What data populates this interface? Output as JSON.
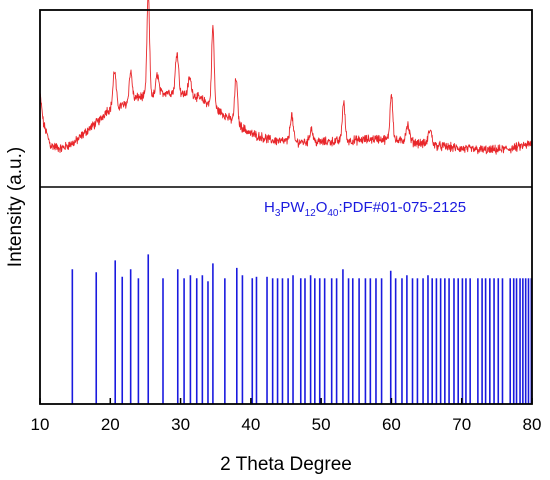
{
  "chart_data": {
    "type": "line",
    "xlabel": "2 Theta Degree",
    "ylabel": "Intensity (a.u.)",
    "xlim": [
      10,
      80
    ],
    "x_ticks": [
      10,
      20,
      30,
      40,
      50,
      60,
      70,
      80
    ],
    "colors": {
      "measured": "#e8262a",
      "reference": "#1a1adf",
      "frame": "#000000"
    },
    "panels": [
      {
        "name": "",
        "role": "measured-xrd-pattern",
        "baseline_points": [
          [
            10.0,
            0.56
          ],
          [
            10.5,
            0.38
          ],
          [
            11.5,
            0.25
          ],
          [
            13,
            0.23
          ],
          [
            15,
            0.27
          ],
          [
            17,
            0.35
          ],
          [
            18.5,
            0.4
          ],
          [
            19.5,
            0.46
          ],
          [
            21,
            0.48
          ],
          [
            22.5,
            0.5
          ],
          [
            24,
            0.54
          ],
          [
            26,
            0.55
          ],
          [
            28,
            0.57
          ],
          [
            30,
            0.56
          ],
          [
            32,
            0.55
          ],
          [
            34,
            0.5
          ],
          [
            36,
            0.44
          ],
          [
            38,
            0.38
          ],
          [
            40,
            0.32
          ],
          [
            43,
            0.28
          ],
          [
            46,
            0.27
          ],
          [
            50,
            0.27
          ],
          [
            55,
            0.28
          ],
          [
            58,
            0.29
          ],
          [
            60,
            0.28
          ],
          [
            63,
            0.27
          ],
          [
            66,
            0.25
          ],
          [
            70,
            0.23
          ],
          [
            74,
            0.22
          ],
          [
            77,
            0.23
          ],
          [
            80,
            0.26
          ]
        ],
        "peaks": [
          {
            "x": 20.6,
            "height": 0.22,
            "width": 0.22
          },
          {
            "x": 22.9,
            "height": 0.18,
            "width": 0.22
          },
          {
            "x": 25.4,
            "height": 0.62,
            "width": 0.18
          },
          {
            "x": 26.7,
            "height": 0.12,
            "width": 0.2
          },
          {
            "x": 29.5,
            "height": 0.25,
            "width": 0.22
          },
          {
            "x": 31.3,
            "height": 0.1,
            "width": 0.22
          },
          {
            "x": 34.6,
            "height": 0.48,
            "width": 0.18
          },
          {
            "x": 37.9,
            "height": 0.27,
            "width": 0.2
          },
          {
            "x": 45.8,
            "height": 0.16,
            "width": 0.22
          },
          {
            "x": 48.6,
            "height": 0.08,
            "width": 0.22
          },
          {
            "x": 53.2,
            "height": 0.23,
            "width": 0.2
          },
          {
            "x": 60.0,
            "height": 0.28,
            "width": 0.2
          },
          {
            "x": 62.3,
            "height": 0.1,
            "width": 0.25
          },
          {
            "x": 65.5,
            "height": 0.09,
            "width": 0.25
          }
        ]
      },
      {
        "name": "H3PW12O40:PDF#01-075-2125",
        "label_parts": [
          {
            "text": "H",
            "sub": false
          },
          {
            "text": "3",
            "sub": true
          },
          {
            "text": "PW",
            "sub": false
          },
          {
            "text": "12",
            "sub": true
          },
          {
            "text": "O",
            "sub": false
          },
          {
            "text": "40",
            "sub": true
          },
          {
            "text": ":PDF#01-075-2125",
            "sub": false
          }
        ],
        "role": "reference-stick-pattern",
        "ylim": [
          0,
          1.45
        ],
        "sticks": [
          [
            14.6,
            0.9
          ],
          [
            18.0,
            0.88
          ],
          [
            20.7,
            0.96
          ],
          [
            21.7,
            0.85
          ],
          [
            22.9,
            0.9
          ],
          [
            24.0,
            0.84
          ],
          [
            25.4,
            1.0
          ],
          [
            27.5,
            0.84
          ],
          [
            29.6,
            0.9
          ],
          [
            30.5,
            0.84
          ],
          [
            31.4,
            0.86
          ],
          [
            32.3,
            0.84
          ],
          [
            33.1,
            0.86
          ],
          [
            33.9,
            0.82
          ],
          [
            34.6,
            0.94
          ],
          [
            36.3,
            0.84
          ],
          [
            38.0,
            0.91
          ],
          [
            38.8,
            0.86
          ],
          [
            40.2,
            0.84
          ],
          [
            40.8,
            0.85
          ],
          [
            42.3,
            0.85
          ],
          [
            43.1,
            0.84
          ],
          [
            43.8,
            0.84
          ],
          [
            44.5,
            0.84
          ],
          [
            45.3,
            0.84
          ],
          [
            46.0,
            0.86
          ],
          [
            47.1,
            0.84
          ],
          [
            47.7,
            0.84
          ],
          [
            48.5,
            0.86
          ],
          [
            49.1,
            0.84
          ],
          [
            49.8,
            0.84
          ],
          [
            50.5,
            0.84
          ],
          [
            51.5,
            0.84
          ],
          [
            52.2,
            0.84
          ],
          [
            53.1,
            0.9
          ],
          [
            53.9,
            0.84
          ],
          [
            54.5,
            0.84
          ],
          [
            55.4,
            0.84
          ],
          [
            56.3,
            0.84
          ],
          [
            57.0,
            0.84
          ],
          [
            57.8,
            0.84
          ],
          [
            58.6,
            0.84
          ],
          [
            59.9,
            0.89
          ],
          [
            60.6,
            0.84
          ],
          [
            61.5,
            0.84
          ],
          [
            62.2,
            0.86
          ],
          [
            63.0,
            0.84
          ],
          [
            63.7,
            0.84
          ],
          [
            64.5,
            0.84
          ],
          [
            65.2,
            0.86
          ],
          [
            65.8,
            0.84
          ],
          [
            66.4,
            0.84
          ],
          [
            67.0,
            0.84
          ],
          [
            67.6,
            0.84
          ],
          [
            68.2,
            0.84
          ],
          [
            68.9,
            0.84
          ],
          [
            69.5,
            0.84
          ],
          [
            70.1,
            0.84
          ],
          [
            70.6,
            0.84
          ],
          [
            71.2,
            0.84
          ],
          [
            72.3,
            0.84
          ],
          [
            72.9,
            0.84
          ],
          [
            73.4,
            0.84
          ],
          [
            74.0,
            0.84
          ],
          [
            74.6,
            0.84
          ],
          [
            75.2,
            0.84
          ],
          [
            75.8,
            0.84
          ],
          [
            76.9,
            0.84
          ],
          [
            77.4,
            0.84
          ],
          [
            77.8,
            0.84
          ],
          [
            78.3,
            0.84
          ],
          [
            78.7,
            0.84
          ],
          [
            79.1,
            0.84
          ],
          [
            79.5,
            0.84
          ],
          [
            79.9,
            0.84
          ]
        ]
      }
    ]
  }
}
